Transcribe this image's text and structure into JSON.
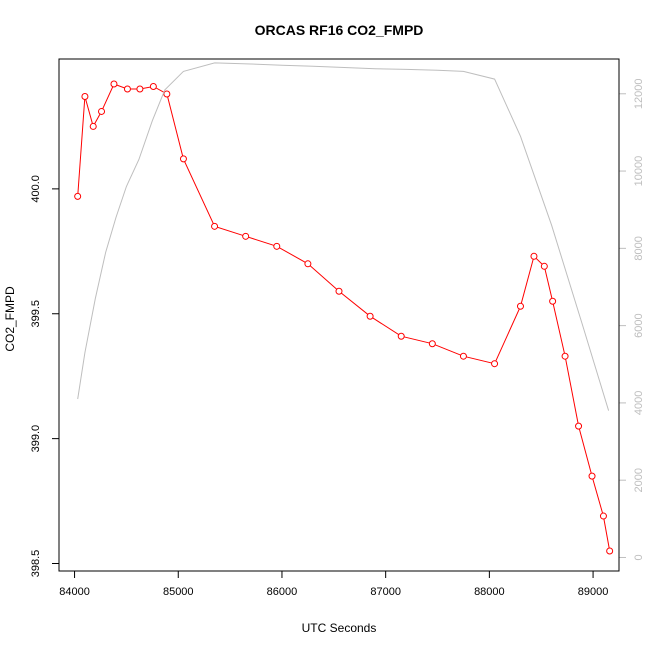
{
  "chart_data": {
    "type": "line",
    "title": "ORCAS RF16 CO2_FMPD",
    "xlabel": "UTC Seconds",
    "ylabel": "CO2_FMPD",
    "xlim": [
      83850,
      89250
    ],
    "ylim": [
      398.47,
      400.52
    ],
    "y2lim": [
      -350,
      12900
    ],
    "x_ticks": [
      84000,
      85000,
      86000,
      87000,
      88000,
      89000
    ],
    "y_ticks": [
      398.5,
      399.0,
      399.5,
      400.0
    ],
    "y2_ticks": [
      0,
      2000,
      4000,
      6000,
      8000,
      10000,
      12000
    ],
    "series": [
      {
        "axis": "left",
        "color": "#ff0000",
        "style": "line-with-open-circles",
        "x": [
          84030,
          84100,
          84180,
          84260,
          84380,
          84510,
          84630,
          84760,
          84890,
          85050,
          85350,
          85650,
          85950,
          86250,
          86550,
          86850,
          87150,
          87450,
          87750,
          88050,
          88300,
          88430,
          88530,
          88610,
          88730,
          88860,
          88990,
          89100,
          89160
        ],
        "values": [
          399.97,
          400.37,
          400.25,
          400.31,
          400.42,
          400.4,
          400.4,
          400.41,
          400.38,
          400.12,
          399.85,
          399.81,
          399.77,
          399.7,
          399.59,
          399.49,
          399.41,
          399.38,
          399.33,
          399.3,
          399.53,
          399.73,
          399.69,
          399.55,
          399.33,
          399.05,
          398.85,
          398.69,
          398.55
        ]
      },
      {
        "axis": "right",
        "color": "#bebebe",
        "style": "line",
        "x": [
          84030,
          84100,
          84200,
          84300,
          84400,
          84500,
          84620,
          84750,
          84870,
          85050,
          85350,
          85700,
          86000,
          86300,
          86600,
          86900,
          87200,
          87500,
          87750,
          88050,
          88300,
          88600,
          88900,
          89150
        ],
        "values": [
          4100,
          5300,
          6700,
          7900,
          8800,
          9600,
          10300,
          11300,
          12100,
          12580,
          12800,
          12770,
          12740,
          12710,
          12680,
          12650,
          12630,
          12610,
          12580,
          12380,
          10900,
          8600,
          6000,
          3800
        ]
      }
    ]
  }
}
